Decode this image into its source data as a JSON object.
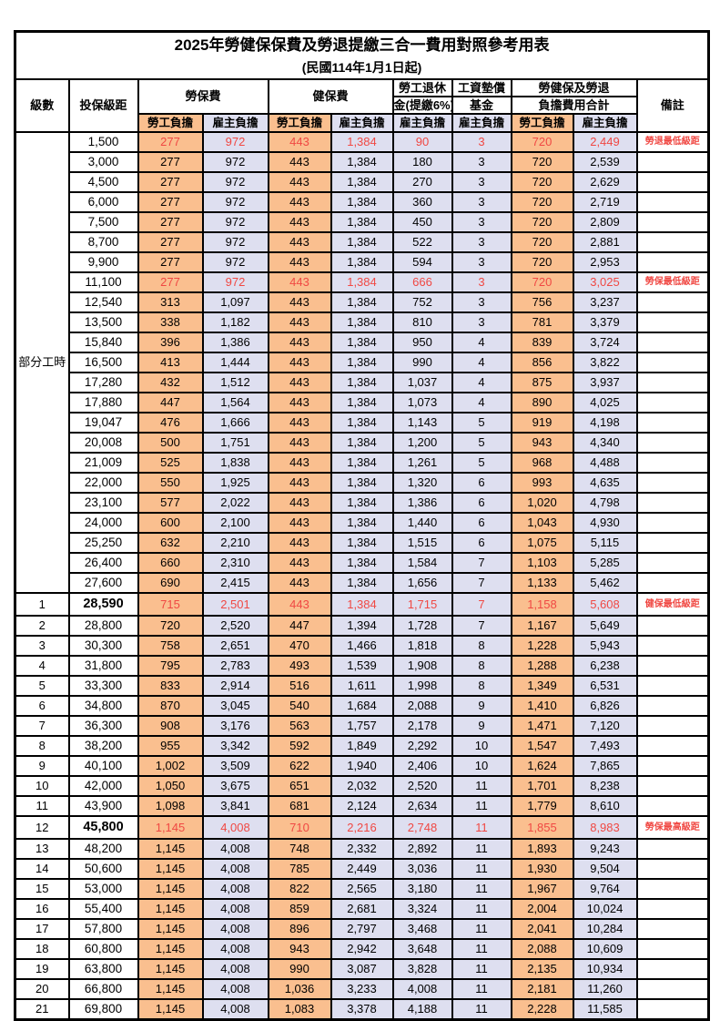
{
  "title": "2025年勞健保保費及勞退提繳三合一費用對照參考用表",
  "subtitle": "(民國114年1月1日起)",
  "colors": {
    "orange": "#FABF8F",
    "lavender": "#DEDFF0",
    "red": "#F04843"
  },
  "header": {
    "level": "級數",
    "bracket": "投保級距",
    "labor_fee": "勞保費",
    "health_fee": "健保費",
    "pension_l1": "勞工退休",
    "pension_l2": "金(提繳6%)",
    "wage_fund_l1": "工資墊償",
    "wage_fund_l2": "基金",
    "total_l1": "勞健保及勞退",
    "total_l2": "負擔費用合計",
    "employee": "勞工負擔",
    "employer": "雇主負擔",
    "remark": "備註"
  },
  "part_time": {
    "label": "部分工時",
    "rowspan": 23
  },
  "rows": [
    {
      "level": "",
      "bracket": "1,500",
      "values": [
        "277",
        "972",
        "443",
        "1,384",
        "90",
        "3",
        "720",
        "2,449"
      ],
      "remark": "勞退最低級距",
      "red": true
    },
    {
      "level": "",
      "bracket": "3,000",
      "values": [
        "277",
        "972",
        "443",
        "1,384",
        "180",
        "3",
        "720",
        "2,539"
      ]
    },
    {
      "level": "",
      "bracket": "4,500",
      "values": [
        "277",
        "972",
        "443",
        "1,384",
        "270",
        "3",
        "720",
        "2,629"
      ]
    },
    {
      "level": "",
      "bracket": "6,000",
      "values": [
        "277",
        "972",
        "443",
        "1,384",
        "360",
        "3",
        "720",
        "2,719"
      ]
    },
    {
      "level": "",
      "bracket": "7,500",
      "values": [
        "277",
        "972",
        "443",
        "1,384",
        "450",
        "3",
        "720",
        "2,809"
      ]
    },
    {
      "level": "",
      "bracket": "8,700",
      "values": [
        "277",
        "972",
        "443",
        "1,384",
        "522",
        "3",
        "720",
        "2,881"
      ]
    },
    {
      "level": "",
      "bracket": "9,900",
      "values": [
        "277",
        "972",
        "443",
        "1,384",
        "594",
        "3",
        "720",
        "2,953"
      ]
    },
    {
      "level": "",
      "bracket": "11,100",
      "values": [
        "277",
        "972",
        "443",
        "1,384",
        "666",
        "3",
        "720",
        "3,025"
      ],
      "remark": "勞保最低級距",
      "red": true
    },
    {
      "level": "",
      "bracket": "12,540",
      "values": [
        "313",
        "1,097",
        "443",
        "1,384",
        "752",
        "3",
        "756",
        "3,237"
      ]
    },
    {
      "level": "",
      "bracket": "13,500",
      "values": [
        "338",
        "1,182",
        "443",
        "1,384",
        "810",
        "3",
        "781",
        "3,379"
      ]
    },
    {
      "level": "",
      "bracket": "15,840",
      "values": [
        "396",
        "1,386",
        "443",
        "1,384",
        "950",
        "4",
        "839",
        "3,724"
      ]
    },
    {
      "level": "",
      "bracket": "16,500",
      "values": [
        "413",
        "1,444",
        "443",
        "1,384",
        "990",
        "4",
        "856",
        "3,822"
      ]
    },
    {
      "level": "",
      "bracket": "17,280",
      "values": [
        "432",
        "1,512",
        "443",
        "1,384",
        "1,037",
        "4",
        "875",
        "3,937"
      ]
    },
    {
      "level": "",
      "bracket": "17,880",
      "values": [
        "447",
        "1,564",
        "443",
        "1,384",
        "1,073",
        "4",
        "890",
        "4,025"
      ]
    },
    {
      "level": "",
      "bracket": "19,047",
      "values": [
        "476",
        "1,666",
        "443",
        "1,384",
        "1,143",
        "5",
        "919",
        "4,198"
      ]
    },
    {
      "level": "",
      "bracket": "20,008",
      "values": [
        "500",
        "1,751",
        "443",
        "1,384",
        "1,200",
        "5",
        "943",
        "4,340"
      ]
    },
    {
      "level": "",
      "bracket": "21,009",
      "values": [
        "525",
        "1,838",
        "443",
        "1,384",
        "1,261",
        "5",
        "968",
        "4,488"
      ]
    },
    {
      "level": "",
      "bracket": "22,000",
      "values": [
        "550",
        "1,925",
        "443",
        "1,384",
        "1,320",
        "6",
        "993",
        "4,635"
      ]
    },
    {
      "level": "",
      "bracket": "23,100",
      "values": [
        "577",
        "2,022",
        "443",
        "1,384",
        "1,386",
        "6",
        "1,020",
        "4,798"
      ]
    },
    {
      "level": "",
      "bracket": "24,000",
      "values": [
        "600",
        "2,100",
        "443",
        "1,384",
        "1,440",
        "6",
        "1,043",
        "4,930"
      ]
    },
    {
      "level": "",
      "bracket": "25,250",
      "values": [
        "632",
        "2,210",
        "443",
        "1,384",
        "1,515",
        "6",
        "1,075",
        "5,115"
      ]
    },
    {
      "level": "",
      "bracket": "26,400",
      "values": [
        "660",
        "2,310",
        "443",
        "1,384",
        "1,584",
        "7",
        "1,103",
        "5,285"
      ]
    },
    {
      "level": "",
      "bracket": "27,600",
      "values": [
        "690",
        "2,415",
        "443",
        "1,384",
        "1,656",
        "7",
        "1,133",
        "5,462"
      ]
    },
    {
      "level": "1",
      "bracket": "28,590",
      "values": [
        "715",
        "2,501",
        "443",
        "1,384",
        "1,715",
        "7",
        "1,158",
        "5,608"
      ],
      "remark": "健保最低級距",
      "red": true,
      "bold": true
    },
    {
      "level": "2",
      "bracket": "28,800",
      "values": [
        "720",
        "2,520",
        "447",
        "1,394",
        "1,728",
        "7",
        "1,167",
        "5,649"
      ]
    },
    {
      "level": "3",
      "bracket": "30,300",
      "values": [
        "758",
        "2,651",
        "470",
        "1,466",
        "1,818",
        "8",
        "1,228",
        "5,943"
      ]
    },
    {
      "level": "4",
      "bracket": "31,800",
      "values": [
        "795",
        "2,783",
        "493",
        "1,539",
        "1,908",
        "8",
        "1,288",
        "6,238"
      ]
    },
    {
      "level": "5",
      "bracket": "33,300",
      "values": [
        "833",
        "2,914",
        "516",
        "1,611",
        "1,998",
        "8",
        "1,349",
        "6,531"
      ]
    },
    {
      "level": "6",
      "bracket": "34,800",
      "values": [
        "870",
        "3,045",
        "540",
        "1,684",
        "2,088",
        "9",
        "1,410",
        "6,826"
      ]
    },
    {
      "level": "7",
      "bracket": "36,300",
      "values": [
        "908",
        "3,176",
        "563",
        "1,757",
        "2,178",
        "9",
        "1,471",
        "7,120"
      ]
    },
    {
      "level": "8",
      "bracket": "38,200",
      "values": [
        "955",
        "3,342",
        "592",
        "1,849",
        "2,292",
        "10",
        "1,547",
        "7,493"
      ]
    },
    {
      "level": "9",
      "bracket": "40,100",
      "values": [
        "1,002",
        "3,509",
        "622",
        "1,940",
        "2,406",
        "10",
        "1,624",
        "7,865"
      ]
    },
    {
      "level": "10",
      "bracket": "42,000",
      "values": [
        "1,050",
        "3,675",
        "651",
        "2,032",
        "2,520",
        "11",
        "1,701",
        "8,238"
      ]
    },
    {
      "level": "11",
      "bracket": "43,900",
      "values": [
        "1,098",
        "3,841",
        "681",
        "2,124",
        "2,634",
        "11",
        "1,779",
        "8,610"
      ]
    },
    {
      "level": "12",
      "bracket": "45,800",
      "values": [
        "1,145",
        "4,008",
        "710",
        "2,216",
        "2,748",
        "11",
        "1,855",
        "8,983"
      ],
      "remark": "勞保最高級距",
      "red": true,
      "bold": true
    },
    {
      "level": "13",
      "bracket": "48,200",
      "values": [
        "1,145",
        "4,008",
        "748",
        "2,332",
        "2,892",
        "11",
        "1,893",
        "9,243"
      ]
    },
    {
      "level": "14",
      "bracket": "50,600",
      "values": [
        "1,145",
        "4,008",
        "785",
        "2,449",
        "3,036",
        "11",
        "1,930",
        "9,504"
      ]
    },
    {
      "level": "15",
      "bracket": "53,000",
      "values": [
        "1,145",
        "4,008",
        "822",
        "2,565",
        "3,180",
        "11",
        "1,967",
        "9,764"
      ]
    },
    {
      "level": "16",
      "bracket": "55,400",
      "values": [
        "1,145",
        "4,008",
        "859",
        "2,681",
        "3,324",
        "11",
        "2,004",
        "10,024"
      ]
    },
    {
      "level": "17",
      "bracket": "57,800",
      "values": [
        "1,145",
        "4,008",
        "896",
        "2,797",
        "3,468",
        "11",
        "2,041",
        "10,284"
      ]
    },
    {
      "level": "18",
      "bracket": "60,800",
      "values": [
        "1,145",
        "4,008",
        "943",
        "2,942",
        "3,648",
        "11",
        "2,088",
        "10,609"
      ]
    },
    {
      "level": "19",
      "bracket": "63,800",
      "values": [
        "1,145",
        "4,008",
        "990",
        "3,087",
        "3,828",
        "11",
        "2,135",
        "10,934"
      ]
    },
    {
      "level": "20",
      "bracket": "66,800",
      "values": [
        "1,145",
        "4,008",
        "1,036",
        "3,233",
        "4,008",
        "11",
        "2,181",
        "11,260"
      ]
    },
    {
      "level": "21",
      "bracket": "69,800",
      "values": [
        "1,145",
        "4,008",
        "1,083",
        "3,378",
        "4,188",
        "11",
        "2,228",
        "11,585"
      ]
    }
  ]
}
